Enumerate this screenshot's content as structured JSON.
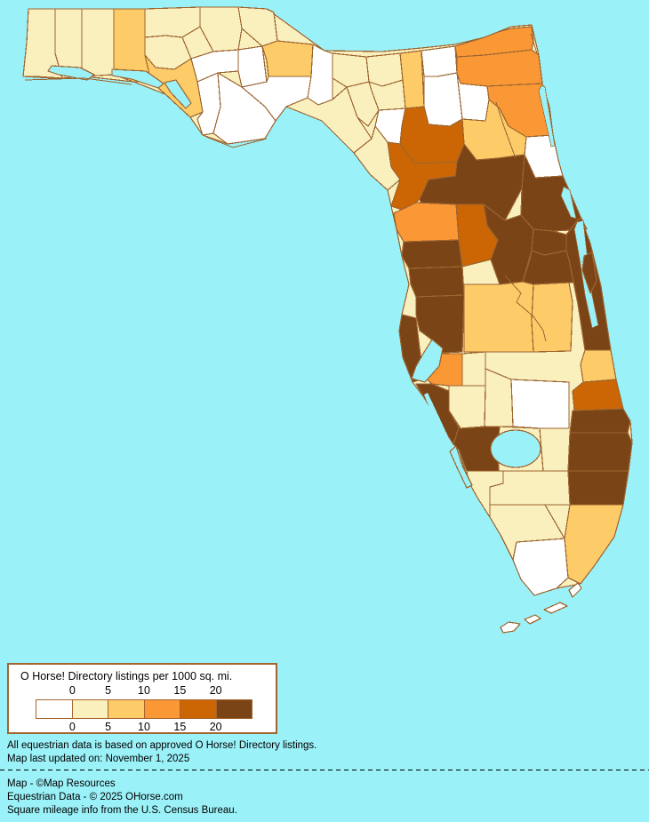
{
  "legend": {
    "title": "O Horse! Directory listings per 1000 sq. mi.",
    "ticks_top": [
      "0",
      "5",
      "10",
      "15",
      "20"
    ],
    "ticks_bottom": [
      "0",
      "5",
      "10",
      "15",
      "20"
    ],
    "bin_colors": [
      "#FFFFFF",
      "#FAF0BE",
      "#FDCB67",
      "#FB9836",
      "#CC6604",
      "#7B4416"
    ],
    "box_border_color": "#A5632E"
  },
  "map": {
    "water_color": "#9BF1F8",
    "land_default_color": "#FAF0BE",
    "county_border_color": "#9C6530",
    "region_bins": {
      "esc": 1,
      "sro": 1,
      "oka": 1,
      "wal": 2,
      "hol": 1,
      "was": 1,
      "bay": 2,
      "jak": 1,
      "cal": 0,
      "lib": 0,
      "gul": 0,
      "fra": 0,
      "gad": 1,
      "leo": 2,
      "wak": 0,
      "jef": 0,
      "mad": 1,
      "tay": 1,
      "ham": 1,
      "suw": 1,
      "laf": 1,
      "col": 2,
      "bak": 0,
      "ubr": 0,
      "nas": 3,
      "duv": 3,
      "cla": 0,
      "stj": 3,
      "put": 2,
      "fla": 0,
      "ala": 4,
      "gil": 0,
      "dix": 1,
      "lev": 4,
      "mar": 5,
      "vol": 5,
      "lak": 5,
      "sum": 4,
      "cit": 3,
      "her": 5,
      "pas": 5,
      "hil": 5,
      "pin": 5,
      "pol": 2,
      "osc": 2,
      "ora": 5,
      "sem": 5,
      "bre": 5,
      "mer": 5,
      "inr": 2,
      "stl": 4,
      "mrt": 5,
      "pbe": 5,
      "bro": 5,
      "mia": 2,
      "mon": 0,
      "cll": 1,
      "hen": 1,
      "lee": 1,
      "gla": 1,
      "oke": 0,
      "hig": 1,
      "har": 1,
      "des": 1,
      "man": 3,
      "sar": 5,
      "cha": 5,
      "k1": 0,
      "k2": 0,
      "k3": 0,
      "k4": 0
    }
  },
  "footnotes": {
    "line1": "All equestrian data is based on approved O Horse! Directory listings.",
    "line2": "Map last updated on: November 1, 2025"
  },
  "credits": {
    "line1": "Map - ©Map Resources",
    "line2": "Equestrian Data - © 2025 OHorse.com",
    "line3": "Square mileage info from the U.S. Census Bureau."
  }
}
